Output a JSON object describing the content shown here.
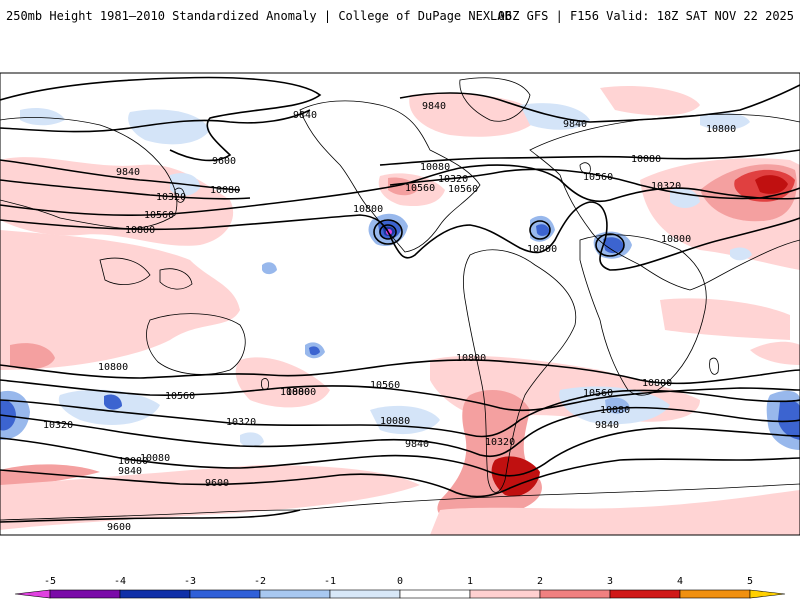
{
  "header": {
    "left_title": "250mb Height 1981–2010 Standardized Anomaly | College of DuPage NEXLAB",
    "right_title": "06Z GFS | F156 Valid: 18Z SAT NOV 22 2025"
  },
  "contour_labels": [
    "9840",
    "9600",
    "9840",
    "10080",
    "10320",
    "10560",
    "10800",
    "9840",
    "10080",
    "10320",
    "10560",
    "10800",
    "10800",
    "10800",
    "9840",
    "10080",
    "10320",
    "10560",
    "10800",
    "10800",
    "10800",
    "10560",
    "10800",
    "10320",
    "10080",
    "10080",
    "9840",
    "9600",
    "9600",
    "10320",
    "10080",
    "9840",
    "10560",
    "10560",
    "10800",
    "10320",
    "10080",
    "9840",
    "10560",
    "10800"
  ],
  "legend": {
    "ticks": [
      "-5",
      "-4",
      "-3",
      "-2",
      "-1",
      "0",
      "1",
      "2",
      "3",
      "4",
      "5"
    ],
    "colors": [
      "#e040e0",
      "#7a0aa8",
      "#1030a8",
      "#3060d8",
      "#a8c8f0",
      "#d8e8f8",
      "#ffffff",
      "#ffd0d0",
      "#f08080",
      "#d01818",
      "#f09010",
      "#ffd000"
    ]
  },
  "colors": {
    "anom_pos_1": "#ffd4d4",
    "anom_pos_2": "#f4a0a0",
    "anom_pos_3": "#e04040",
    "anom_pos_4": "#c01010",
    "anom_neg_1": "#d4e4f8",
    "anom_neg_2": "#98b8ec",
    "anom_neg_3": "#3c64d0",
    "anom_neg_4": "#1c38a0",
    "extreme_low": "#e040e0",
    "contour": "#000000",
    "coast": "#000000"
  }
}
